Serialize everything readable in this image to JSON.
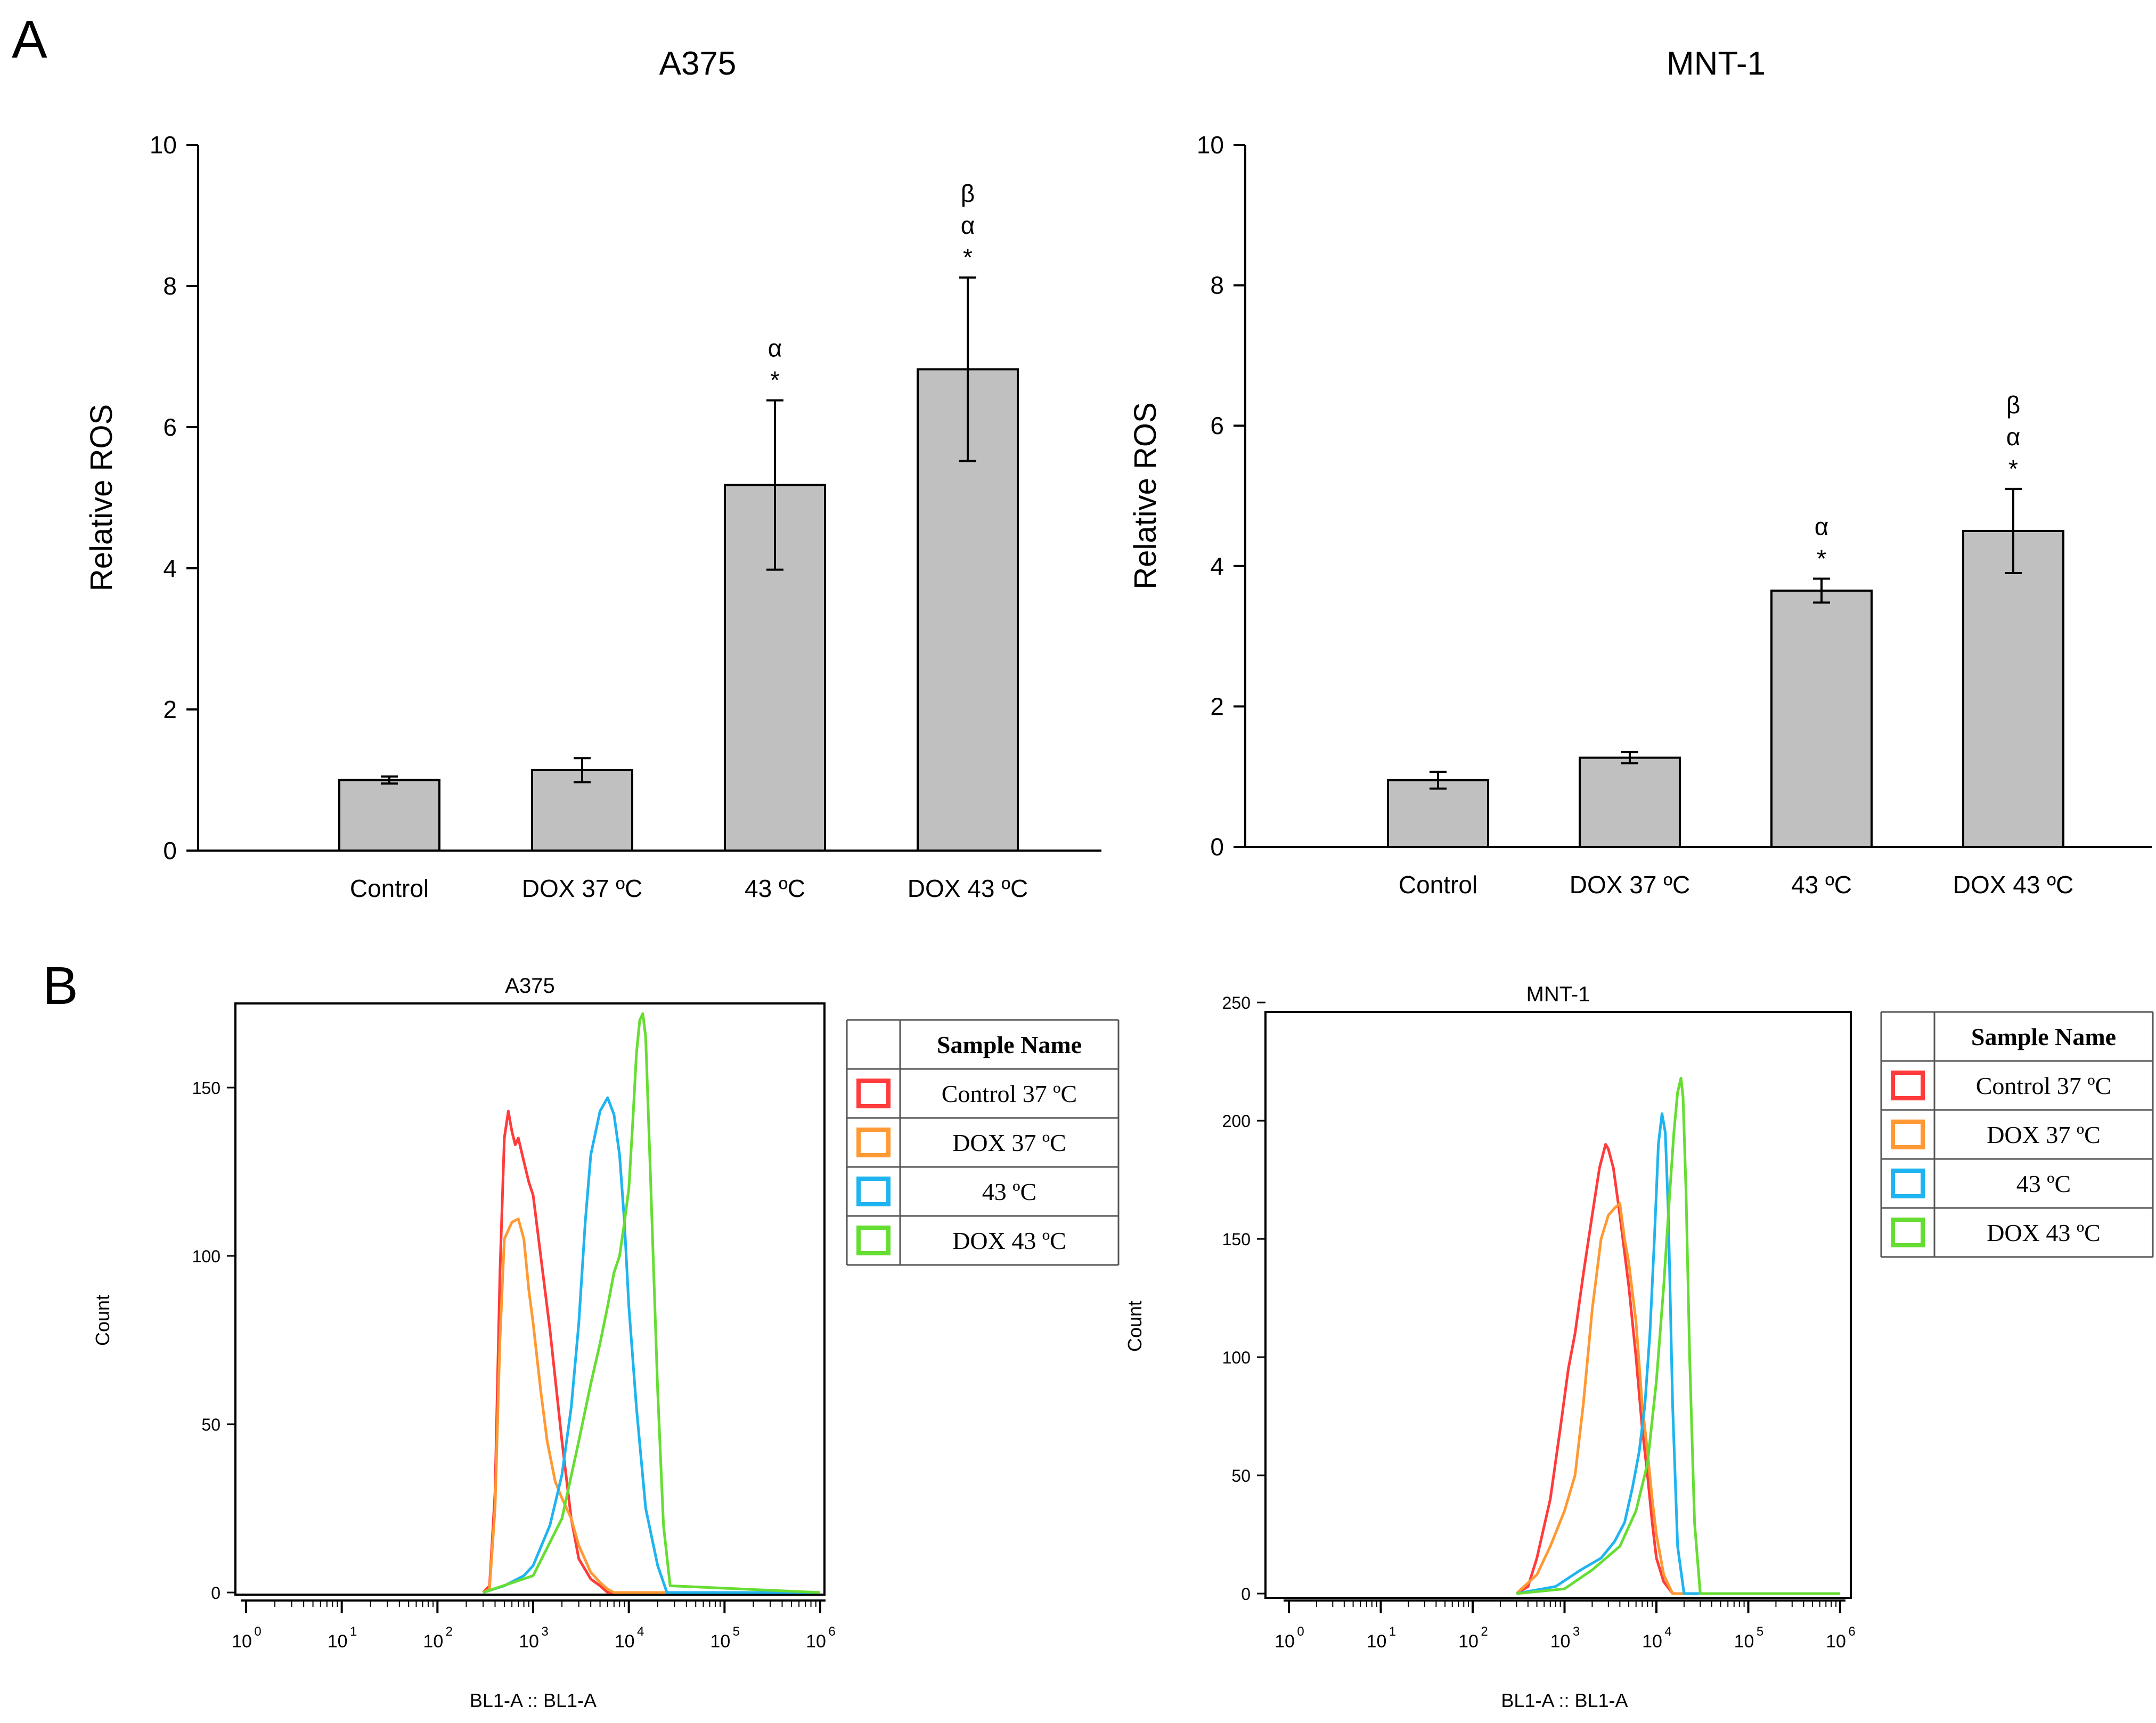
{
  "panel_labels": [
    "A",
    "B"
  ],
  "colors": {
    "bar_fill": "#c0c0c0",
    "axis": "#000000",
    "control": "#ff3b3b",
    "dox37": "#ff9933",
    "h43": "#1fb4f0",
    "dox43": "#66dd33"
  },
  "legend": {
    "header": "Sample Name",
    "entries": [
      "Control 37 ºC",
      "DOX 37 ºC",
      "43 ºC",
      "DOX 43 ºC"
    ]
  },
  "chart_data": [
    {
      "type": "bar",
      "title": "A375",
      "ylabel": "Relative ROS",
      "xlabel": "",
      "ylim": [
        0,
        10
      ],
      "yticks": [
        "0",
        "2",
        "4",
        "6",
        "8",
        "10"
      ],
      "categories": [
        "Control",
        "DOX 37 ºC",
        "43 ºC",
        "DOX 43 ºC"
      ],
      "values": [
        1.0,
        1.14,
        5.18,
        6.82
      ],
      "errors": [
        0.05,
        0.17,
        1.2,
        1.3
      ],
      "annotations": [
        [],
        [],
        [
          "α",
          "*"
        ],
        [
          "β",
          "α",
          "*"
        ]
      ],
      "grid": false
    },
    {
      "type": "bar",
      "title": "MNT-1",
      "ylabel": "Relative ROS",
      "xlabel": "",
      "ylim": [
        0,
        10
      ],
      "yticks": [
        "0",
        "2",
        "4",
        "6",
        "8",
        "10"
      ],
      "categories": [
        "Control",
        "DOX 37 ºC",
        "43 ºC",
        "DOX 43 ºC"
      ],
      "values": [
        0.95,
        1.27,
        3.65,
        4.5
      ],
      "errors": [
        0.12,
        0.08,
        0.17,
        0.6
      ],
      "annotations": [
        [],
        [],
        [
          "α",
          "*"
        ],
        [
          "β",
          "α",
          "*"
        ]
      ],
      "grid": false
    },
    {
      "type": "line",
      "title": "A375",
      "xlabel": "BL1-A :: BL1-A",
      "ylabel": "Count",
      "xscale": "log",
      "xlim": [
        1,
        1000000
      ],
      "ylim": [
        0,
        175
      ],
      "yticks": [
        "0",
        "50",
        "100",
        "150"
      ],
      "xticks": [
        "10",
        "10",
        "10",
        "10",
        "10",
        "10",
        "10"
      ],
      "xtick_exponents": [
        "0",
        "1",
        "2",
        "3",
        "4",
        "5",
        "6"
      ],
      "series": [
        {
          "name": "Control 37 ºC",
          "x": [
            300,
            350,
            400,
            450,
            500,
            550,
            600,
            650,
            700,
            800,
            900,
            1000,
            1200,
            1500,
            2000,
            2500,
            3000,
            4000,
            5000,
            6000,
            1000000
          ],
          "y": [
            0,
            2,
            30,
            95,
            135,
            143,
            137,
            133,
            135,
            128,
            122,
            118,
            100,
            78,
            45,
            22,
            10,
            4,
            2,
            0,
            0
          ]
        },
        {
          "name": "DOX 37 ºC",
          "x": [
            300,
            350,
            400,
            450,
            500,
            600,
            700,
            800,
            900,
            1000,
            1200,
            1400,
            1700,
            2000,
            2500,
            3000,
            4000,
            5000,
            6000,
            7000,
            1000000
          ],
          "y": [
            0,
            1,
            25,
            75,
            105,
            110,
            111,
            105,
            90,
            80,
            60,
            45,
            33,
            28,
            22,
            14,
            6,
            3,
            1,
            0,
            0
          ]
        },
        {
          "name": "43 ºC",
          "x": [
            300,
            500,
            800,
            1000,
            1500,
            2000,
            2500,
            3000,
            3500,
            4000,
            5000,
            6000,
            7000,
            8000,
            9000,
            10000,
            12000,
            15000,
            20000,
            25000,
            1000000
          ],
          "y": [
            0,
            2,
            5,
            8,
            20,
            35,
            55,
            80,
            110,
            130,
            143,
            147,
            142,
            130,
            110,
            85,
            55,
            25,
            8,
            0,
            0
          ]
        },
        {
          "name": "DOX 43 ºC",
          "x": [
            300,
            1000,
            2000,
            3000,
            4000,
            5000,
            6000,
            7000,
            8000,
            9000,
            10000,
            11000,
            12000,
            13000,
            14000,
            15000,
            17000,
            20000,
            23000,
            27000,
            1000000
          ],
          "y": [
            0,
            5,
            22,
            45,
            62,
            74,
            85,
            95,
            100,
            110,
            120,
            140,
            160,
            170,
            172,
            165,
            120,
            60,
            20,
            2,
            0
          ]
        }
      ],
      "legend": "outside-right",
      "grid": false
    },
    {
      "type": "line",
      "title": "MNT-1",
      "xlabel": "BL1-A :: BL1-A",
      "ylabel": "Count",
      "xscale": "log",
      "xlim": [
        1,
        1000000
      ],
      "ylim": [
        0,
        255
      ],
      "yticks": [
        "0",
        "50",
        "100",
        "150",
        "200",
        "250"
      ],
      "xticks": [
        "10",
        "10",
        "10",
        "10",
        "10",
        "10",
        "10"
      ],
      "xtick_exponents": [
        "0",
        "1",
        "2",
        "3",
        "4",
        "5",
        "6"
      ],
      "series": [
        {
          "name": "Control 37 ºC",
          "x": [
            300,
            400,
            500,
            700,
            900,
            1100,
            1300,
            1600,
            2000,
            2400,
            2800,
            3000,
            3400,
            4000,
            5000,
            6000,
            7000,
            8000,
            9000,
            10000,
            12000,
            15000,
            1000000
          ],
          "y": [
            0,
            3,
            15,
            40,
            70,
            95,
            110,
            135,
            160,
            180,
            190,
            188,
            180,
            160,
            130,
            100,
            70,
            50,
            30,
            15,
            5,
            0,
            0
          ]
        },
        {
          "name": "DOX 37 ºC",
          "x": [
            300,
            500,
            700,
            1000,
            1300,
            1600,
            2000,
            2500,
            3000,
            3500,
            4000,
            4500,
            5000,
            6000,
            7000,
            8000,
            9000,
            10000,
            12000,
            15000,
            1000000
          ],
          "y": [
            0,
            8,
            20,
            35,
            50,
            80,
            120,
            150,
            160,
            163,
            165,
            150,
            140,
            115,
            80,
            60,
            40,
            25,
            8,
            0,
            0
          ]
        },
        {
          "name": "43 ºC",
          "x": [
            300,
            800,
            1500,
            2500,
            3500,
            4500,
            5500,
            6500,
            7500,
            8500,
            9500,
            10500,
            11500,
            12500,
            13500,
            15000,
            17000,
            20000,
            1000000
          ],
          "y": [
            0,
            3,
            10,
            15,
            22,
            30,
            45,
            60,
            80,
            110,
            150,
            190,
            203,
            195,
            160,
            80,
            20,
            0,
            0
          ]
        },
        {
          "name": "DOX 43 ºC",
          "x": [
            300,
            1000,
            2000,
            4000,
            6000,
            8000,
            10000,
            12000,
            14000,
            15500,
            17000,
            18500,
            19500,
            21000,
            23000,
            26000,
            30000,
            1000000
          ],
          "y": [
            0,
            2,
            10,
            20,
            35,
            55,
            90,
            130,
            170,
            195,
            212,
            218,
            210,
            170,
            100,
            30,
            0,
            0
          ]
        }
      ],
      "legend": "outside-right",
      "grid": false
    }
  ]
}
